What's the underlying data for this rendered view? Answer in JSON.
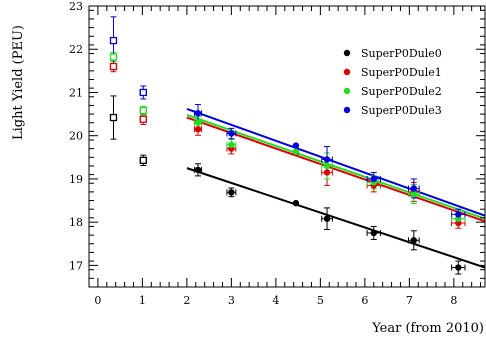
{
  "chart_data": {
    "type": "scatter",
    "title": "",
    "xlabel": "Year (from 2010)",
    "ylabel": "Light Yield (PEU)",
    "xlim": [
      -0.2,
      8.7
    ],
    "ylim": [
      16.5,
      23
    ],
    "xticks": [
      "0",
      "1",
      "2",
      "3",
      "4",
      "5",
      "6",
      "7",
      "8"
    ],
    "yticks": [
      "17",
      "18",
      "19",
      "20",
      "21",
      "22",
      "23"
    ],
    "legend_position": "top-right",
    "series": [
      {
        "name": "SuperP0Dule0",
        "color": "#000000",
        "open_points": [
          {
            "x": 0.35,
            "y": 20.42,
            "xerr": 0.05,
            "yerr": 0.5
          },
          {
            "x": 1.02,
            "y": 19.43,
            "xerr": 0.07,
            "yerr": 0.12
          }
        ],
        "points": [
          {
            "x": 2.25,
            "y": 19.21,
            "xerr": 0.08,
            "yerr": 0.14
          },
          {
            "x": 3.0,
            "y": 18.69,
            "xerr": 0.1,
            "yerr": 0.1
          },
          {
            "x": 4.45,
            "y": 18.44,
            "xerr": 0.0,
            "yerr": 0.0
          },
          {
            "x": 5.15,
            "y": 18.08,
            "xerr": 0.12,
            "yerr": 0.25
          },
          {
            "x": 6.2,
            "y": 17.75,
            "xerr": 0.15,
            "yerr": 0.15
          },
          {
            "x": 7.1,
            "y": 17.58,
            "xerr": 0.12,
            "yerr": 0.22
          },
          {
            "x": 8.1,
            "y": 16.95,
            "xerr": 0.15,
            "yerr": 0.15
          }
        ],
        "fit": {
          "x": [
            2.0,
            8.7
          ],
          "y": [
            19.25,
            16.95
          ]
        }
      },
      {
        "name": "SuperP0Dule1",
        "color": "#e00000",
        "open_points": [
          {
            "x": 0.35,
            "y": 21.6,
            "xerr": 0.05,
            "yerr": 0.12
          },
          {
            "x": 1.02,
            "y": 20.38,
            "xerr": 0.07,
            "yerr": 0.12
          }
        ],
        "points": [
          {
            "x": 2.25,
            "y": 20.15,
            "xerr": 0.08,
            "yerr": 0.14
          },
          {
            "x": 3.0,
            "y": 19.7,
            "xerr": 0.1,
            "yerr": 0.12
          },
          {
            "x": 4.45,
            "y": 19.61,
            "xerr": 0.0,
            "yerr": 0.0
          },
          {
            "x": 5.15,
            "y": 19.15,
            "xerr": 0.12,
            "yerr": 0.3
          },
          {
            "x": 6.2,
            "y": 18.85,
            "xerr": 0.15,
            "yerr": 0.15
          },
          {
            "x": 7.1,
            "y": 18.7,
            "xerr": 0.12,
            "yerr": 0.22
          },
          {
            "x": 8.1,
            "y": 17.98,
            "xerr": 0.15,
            "yerr": 0.12
          }
        ],
        "fit": {
          "x": [
            2.0,
            8.7
          ],
          "y": [
            20.42,
            18.02
          ]
        }
      },
      {
        "name": "SuperP0Dule2",
        "color": "#22dd22",
        "open_points": [
          {
            "x": 0.35,
            "y": 21.82,
            "xerr": 0.05,
            "yerr": 0.1
          },
          {
            "x": 1.02,
            "y": 20.58,
            "xerr": 0.07,
            "yerr": 0.1
          }
        ],
        "points": [
          {
            "x": 2.25,
            "y": 20.3,
            "xerr": 0.08,
            "yerr": 0.14
          },
          {
            "x": 3.0,
            "y": 19.79,
            "xerr": 0.1,
            "yerr": 0.12
          },
          {
            "x": 4.45,
            "y": 19.63,
            "xerr": 0.0,
            "yerr": 0.0
          },
          {
            "x": 5.15,
            "y": 19.3,
            "xerr": 0.12,
            "yerr": 0.3
          },
          {
            "x": 6.2,
            "y": 18.92,
            "xerr": 0.15,
            "yerr": 0.15
          },
          {
            "x": 7.1,
            "y": 18.65,
            "xerr": 0.12,
            "yerr": 0.22
          },
          {
            "x": 8.1,
            "y": 18.08,
            "xerr": 0.15,
            "yerr": 0.12
          }
        ],
        "fit": {
          "x": [
            2.0,
            8.7
          ],
          "y": [
            20.48,
            18.08
          ]
        }
      },
      {
        "name": "SuperP0Dule3",
        "color": "#0000e0",
        "open_points": [
          {
            "x": 0.35,
            "y": 22.2,
            "xerr": 0.05,
            "yerr": 0.55
          },
          {
            "x": 1.02,
            "y": 21.0,
            "xerr": 0.07,
            "yerr": 0.15
          }
        ],
        "points": [
          {
            "x": 2.25,
            "y": 20.52,
            "xerr": 0.08,
            "yerr": 0.2
          },
          {
            "x": 3.0,
            "y": 20.05,
            "xerr": 0.1,
            "yerr": 0.12
          },
          {
            "x": 4.45,
            "y": 19.77,
            "xerr": 0.0,
            "yerr": 0.0
          },
          {
            "x": 5.15,
            "y": 19.45,
            "xerr": 0.12,
            "yerr": 0.3
          },
          {
            "x": 6.2,
            "y": 19.0,
            "xerr": 0.15,
            "yerr": 0.15
          },
          {
            "x": 7.1,
            "y": 18.78,
            "xerr": 0.12,
            "yerr": 0.22
          },
          {
            "x": 8.1,
            "y": 18.18,
            "xerr": 0.15,
            "yerr": 0.12
          }
        ],
        "fit": {
          "x": [
            2.0,
            8.7
          ],
          "y": [
            20.62,
            18.15
          ]
        }
      }
    ]
  }
}
